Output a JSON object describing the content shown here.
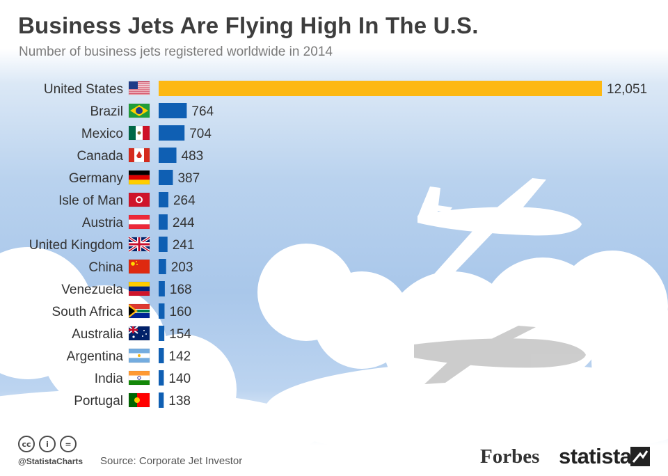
{
  "header": {
    "title": "Business Jets Are Flying High In The U.S.",
    "subtitle": "Number of business jets registered worldwide in 2014"
  },
  "chart_data": {
    "type": "bar",
    "orientation": "horizontal",
    "title": "Business Jets Are Flying High In The U.S.",
    "subtitle": "Number of business jets registered worldwide in 2014",
    "categories": [
      "United States",
      "Brazil",
      "Mexico",
      "Canada",
      "Germany",
      "Isle of Man",
      "Austria",
      "United Kingdom",
      "China",
      "Venezuela",
      "South Africa",
      "Australia",
      "Argentina",
      "India",
      "Portugal"
    ],
    "values": [
      12051,
      764,
      704,
      483,
      387,
      264,
      244,
      241,
      203,
      168,
      160,
      154,
      142,
      140,
      138
    ],
    "value_labels": [
      "12,051",
      "764",
      "704",
      "483",
      "387",
      "264",
      "244",
      "241",
      "203",
      "168",
      "160",
      "154",
      "142",
      "140",
      "138"
    ],
    "xlim": [
      0,
      12051
    ],
    "highlight_color": "#fdb813",
    "bar_color": "#0f5fb3"
  },
  "footer": {
    "cc_icons": [
      "cc",
      "i",
      "="
    ],
    "handle": "@StatistaCharts",
    "source": "Source: Corporate Jet Investor",
    "forbes": "Forbes",
    "statista": "statista"
  },
  "colors": {
    "title": "#3d3d3d",
    "subtitle": "#7b7b7b",
    "label": "#333333"
  }
}
